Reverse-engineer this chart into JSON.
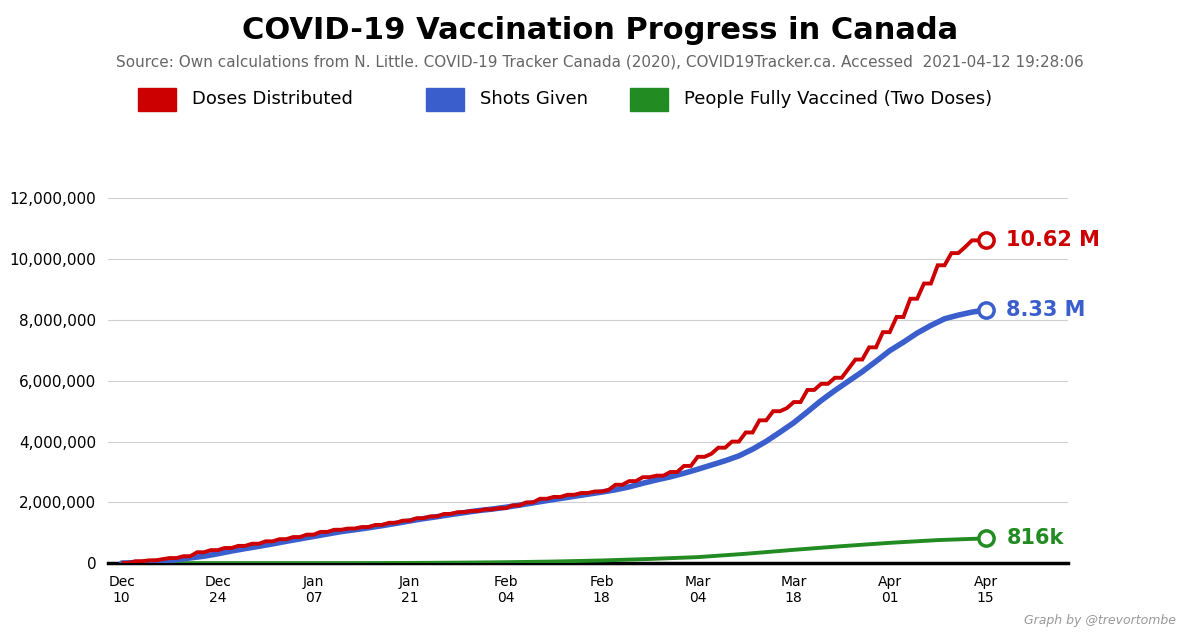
{
  "title": "COVID-19 Vaccination Progress in Canada",
  "subtitle": "Source: Own calculations from N. Little. COVID-19 Tracker Canada (2020), COVID19Tracker.ca. Accessed  2021-04-12 19:28:06",
  "background_color": "#ffffff",
  "title_fontsize": 22,
  "subtitle_fontsize": 11,
  "ylabel_fontsize": 13,
  "ylim": [
    0,
    12000000
  ],
  "yticks": [
    0,
    2000000,
    4000000,
    6000000,
    8000000,
    10000000,
    12000000
  ],
  "line_colors": {
    "distributed": "#cc0000",
    "shots": "#3a5fcd",
    "fully": "#228B22"
  },
  "end_labels": {
    "distributed": "10.62 M",
    "shots": "8.33 M",
    "fully": "816k"
  },
  "legend_labels": [
    "Doses Distributed",
    "Shots Given",
    "People Fully Vaccined (Two Doses)"
  ],
  "x_tick_dates": [
    "Dec\n10",
    "Dec\n24",
    "Jan\n07",
    "Jan\n21",
    "Feb\n04",
    "Feb\n18",
    "Mar\n04",
    "Mar\n18",
    "Apr\n01",
    "Apr\n15"
  ],
  "x_tick_positions": [
    0,
    14,
    28,
    42,
    56,
    70,
    84,
    98,
    112,
    126
  ],
  "watermark": "Graph by @trevortombe",
  "distributed_data": [
    [
      0,
      12000
    ],
    [
      1,
      12000
    ],
    [
      2,
      65000
    ],
    [
      3,
      65000
    ],
    [
      4,
      95000
    ],
    [
      5,
      95000
    ],
    [
      6,
      135000
    ],
    [
      7,
      170000
    ],
    [
      8,
      170000
    ],
    [
      9,
      230000
    ],
    [
      10,
      230000
    ],
    [
      11,
      360000
    ],
    [
      12,
      360000
    ],
    [
      13,
      430000
    ],
    [
      14,
      430000
    ],
    [
      15,
      500000
    ],
    [
      16,
      500000
    ],
    [
      17,
      570000
    ],
    [
      18,
      570000
    ],
    [
      19,
      640000
    ],
    [
      20,
      640000
    ],
    [
      21,
      720000
    ],
    [
      22,
      720000
    ],
    [
      23,
      790000
    ],
    [
      24,
      790000
    ],
    [
      25,
      860000
    ],
    [
      26,
      860000
    ],
    [
      27,
      940000
    ],
    [
      28,
      940000
    ],
    [
      29,
      1030000
    ],
    [
      30,
      1030000
    ],
    [
      31,
      1100000
    ],
    [
      32,
      1100000
    ],
    [
      33,
      1140000
    ],
    [
      34,
      1140000
    ],
    [
      35,
      1190000
    ],
    [
      36,
      1190000
    ],
    [
      37,
      1260000
    ],
    [
      38,
      1260000
    ],
    [
      39,
      1330000
    ],
    [
      40,
      1330000
    ],
    [
      41,
      1400000
    ],
    [
      42,
      1400000
    ],
    [
      43,
      1480000
    ],
    [
      44,
      1480000
    ],
    [
      45,
      1540000
    ],
    [
      46,
      1540000
    ],
    [
      47,
      1620000
    ],
    [
      48,
      1620000
    ],
    [
      49,
      1680000
    ],
    [
      50,
      1680000
    ],
    [
      51,
      1720000
    ],
    [
      52,
      1720000
    ],
    [
      53,
      1770000
    ],
    [
      54,
      1770000
    ],
    [
      55,
      1810000
    ],
    [
      56,
      1810000
    ],
    [
      57,
      1900000
    ],
    [
      58,
      1900000
    ],
    [
      59,
      2000000
    ],
    [
      60,
      2000000
    ],
    [
      61,
      2120000
    ],
    [
      62,
      2120000
    ],
    [
      63,
      2180000
    ],
    [
      64,
      2180000
    ],
    [
      65,
      2250000
    ],
    [
      66,
      2250000
    ],
    [
      67,
      2310000
    ],
    [
      68,
      2310000
    ],
    [
      69,
      2360000
    ],
    [
      70,
      2360000
    ],
    [
      71,
      2410000
    ],
    [
      72,
      2580000
    ],
    [
      73,
      2580000
    ],
    [
      74,
      2700000
    ],
    [
      75,
      2700000
    ],
    [
      76,
      2830000
    ],
    [
      77,
      2830000
    ],
    [
      78,
      2880000
    ],
    [
      79,
      2880000
    ],
    [
      80,
      3000000
    ],
    [
      81,
      3000000
    ],
    [
      82,
      3200000
    ],
    [
      83,
      3200000
    ],
    [
      84,
      3500000
    ],
    [
      85,
      3500000
    ],
    [
      86,
      3600000
    ],
    [
      87,
      3800000
    ],
    [
      88,
      3800000
    ],
    [
      89,
      4000000
    ],
    [
      90,
      4000000
    ],
    [
      91,
      4300000
    ],
    [
      92,
      4300000
    ],
    [
      93,
      4700000
    ],
    [
      94,
      4700000
    ],
    [
      95,
      5000000
    ],
    [
      96,
      5000000
    ],
    [
      97,
      5100000
    ],
    [
      98,
      5300000
    ],
    [
      99,
      5300000
    ],
    [
      100,
      5700000
    ],
    [
      101,
      5700000
    ],
    [
      102,
      5900000
    ],
    [
      103,
      5900000
    ],
    [
      104,
      6100000
    ],
    [
      105,
      6100000
    ],
    [
      106,
      6400000
    ],
    [
      107,
      6700000
    ],
    [
      108,
      6700000
    ],
    [
      109,
      7100000
    ],
    [
      110,
      7100000
    ],
    [
      111,
      7600000
    ],
    [
      112,
      7600000
    ],
    [
      113,
      8100000
    ],
    [
      114,
      8100000
    ],
    [
      115,
      8700000
    ],
    [
      116,
      8700000
    ],
    [
      117,
      9200000
    ],
    [
      118,
      9200000
    ],
    [
      119,
      9800000
    ],
    [
      120,
      9800000
    ],
    [
      121,
      10200000
    ],
    [
      122,
      10200000
    ],
    [
      123,
      10400000
    ],
    [
      124,
      10620000
    ],
    [
      126,
      10620000
    ]
  ],
  "shots_data": [
    [
      0,
      4000
    ],
    [
      2,
      18000
    ],
    [
      4,
      40000
    ],
    [
      7,
      90000
    ],
    [
      9,
      145000
    ],
    [
      12,
      230000
    ],
    [
      14,
      310000
    ],
    [
      16,
      400000
    ],
    [
      18,
      480000
    ],
    [
      20,
      555000
    ],
    [
      22,
      635000
    ],
    [
      24,
      720000
    ],
    [
      26,
      800000
    ],
    [
      28,
      880000
    ],
    [
      30,
      960000
    ],
    [
      32,
      1040000
    ],
    [
      34,
      1100000
    ],
    [
      36,
      1165000
    ],
    [
      38,
      1235000
    ],
    [
      40,
      1310000
    ],
    [
      42,
      1390000
    ],
    [
      44,
      1465000
    ],
    [
      46,
      1530000
    ],
    [
      48,
      1600000
    ],
    [
      50,
      1665000
    ],
    [
      52,
      1730000
    ],
    [
      54,
      1780000
    ],
    [
      56,
      1840000
    ],
    [
      58,
      1910000
    ],
    [
      60,
      1985000
    ],
    [
      62,
      2060000
    ],
    [
      64,
      2130000
    ],
    [
      66,
      2200000
    ],
    [
      68,
      2270000
    ],
    [
      70,
      2340000
    ],
    [
      72,
      2415000
    ],
    [
      74,
      2510000
    ],
    [
      76,
      2630000
    ],
    [
      78,
      2740000
    ],
    [
      80,
      2840000
    ],
    [
      82,
      2960000
    ],
    [
      84,
      3090000
    ],
    [
      86,
      3230000
    ],
    [
      88,
      3370000
    ],
    [
      90,
      3530000
    ],
    [
      92,
      3750000
    ],
    [
      94,
      4010000
    ],
    [
      96,
      4310000
    ],
    [
      98,
      4620000
    ],
    [
      100,
      4980000
    ],
    [
      102,
      5350000
    ],
    [
      104,
      5680000
    ],
    [
      106,
      5990000
    ],
    [
      108,
      6300000
    ],
    [
      110,
      6640000
    ],
    [
      112,
      6990000
    ],
    [
      114,
      7270000
    ],
    [
      116,
      7570000
    ],
    [
      118,
      7820000
    ],
    [
      120,
      8040000
    ],
    [
      122,
      8160000
    ],
    [
      124,
      8260000
    ],
    [
      126,
      8330000
    ]
  ],
  "fully_data": [
    [
      0,
      0
    ],
    [
      28,
      500
    ],
    [
      35,
      2000
    ],
    [
      42,
      8000
    ],
    [
      49,
      18000
    ],
    [
      56,
      32000
    ],
    [
      63,
      55000
    ],
    [
      70,
      90000
    ],
    [
      77,
      140000
    ],
    [
      84,
      200000
    ],
    [
      91,
      310000
    ],
    [
      98,
      440000
    ],
    [
      105,
      560000
    ],
    [
      112,
      670000
    ],
    [
      119,
      760000
    ],
    [
      126,
      816000
    ]
  ]
}
